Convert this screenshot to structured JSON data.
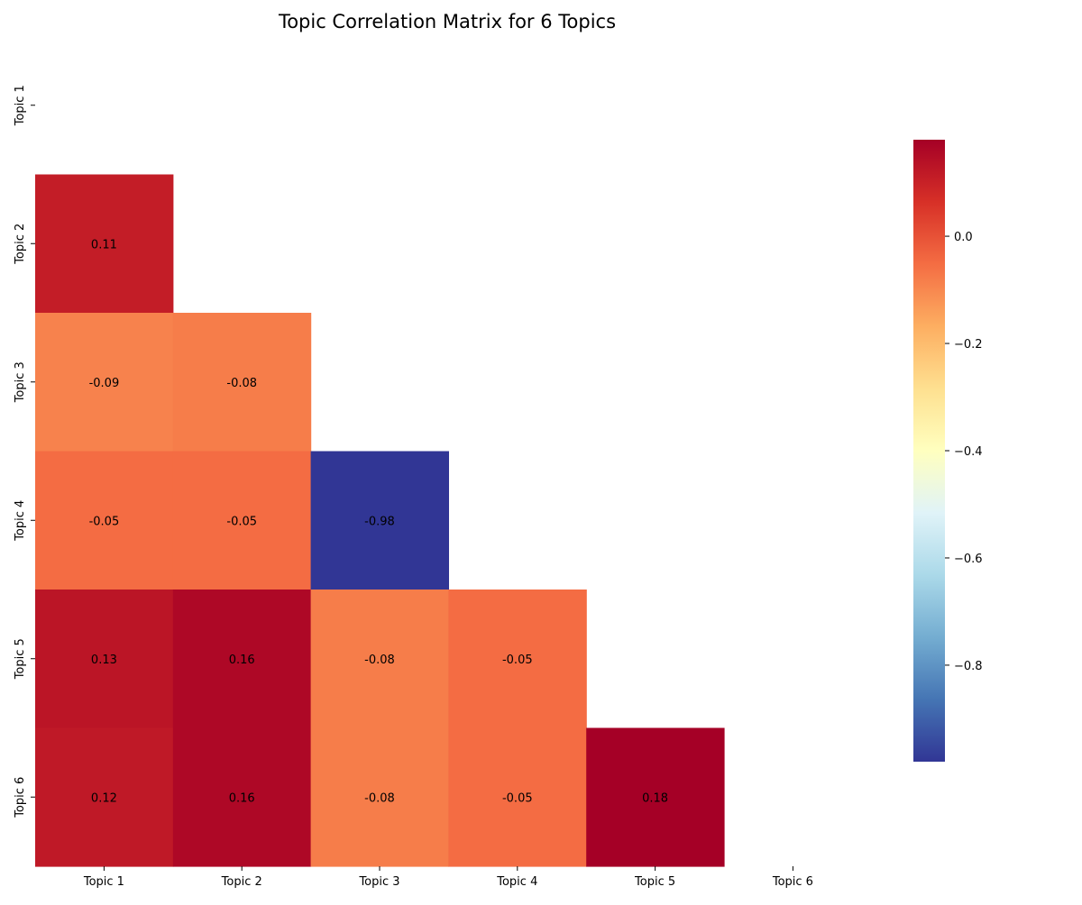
{
  "chart_data": {
    "type": "heatmap",
    "title": "Topic Correlation Matrix for 6 Topics",
    "xlabel": "",
    "ylabel": "",
    "x_labels": [
      "Topic 1",
      "Topic 2",
      "Topic 3",
      "Topic 4",
      "Topic 5",
      "Topic 6"
    ],
    "y_labels": [
      "Topic 1",
      "Topic 2",
      "Topic 3",
      "Topic 4",
      "Topic 5",
      "Topic 6"
    ],
    "mask": "upper-triangle-including-diagonal",
    "values": [
      [
        null,
        null,
        null,
        null,
        null,
        null
      ],
      [
        0.11,
        null,
        null,
        null,
        null,
        null
      ],
      [
        -0.09,
        -0.08,
        null,
        null,
        null,
        null
      ],
      [
        -0.05,
        -0.05,
        -0.98,
        null,
        null,
        null
      ],
      [
        0.13,
        0.16,
        -0.08,
        -0.05,
        null,
        null
      ],
      [
        0.12,
        0.16,
        -0.08,
        -0.05,
        0.18,
        null
      ]
    ],
    "colormap": "RdYlBu_r",
    "colorbar": {
      "range": [
        -0.98,
        0.18
      ],
      "ticks": [
        0.0,
        -0.2,
        -0.4,
        -0.6,
        -0.8
      ],
      "tick_labels": [
        "0.0",
        "−0.2",
        "−0.4",
        "−0.6",
        "−0.8"
      ]
    },
    "annotations": true,
    "grid": false,
    "legend": "colorbar-right"
  }
}
